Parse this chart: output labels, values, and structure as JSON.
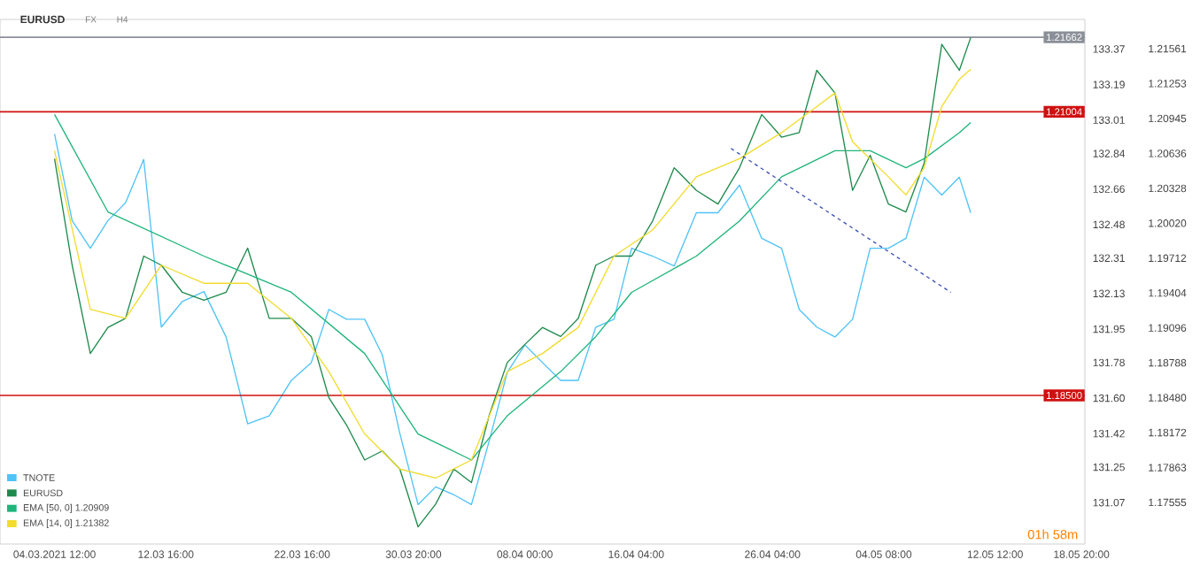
{
  "chart_data": {
    "type": "line",
    "title": "EURUSD",
    "annotations": [
      "FX",
      "H4",
      "01h 58m"
    ],
    "x": [
      "2021-03-04T12:00",
      "2021-03-05T19:00",
      "2021-03-07T03:00",
      "2021-03-08T10:00",
      "2021-03-09T17:00",
      "2021-03-11T01:00",
      "2021-03-12T08:00",
      "2021-03-13T21:00",
      "2021-03-15T11:00",
      "2021-03-17T02:00",
      "2021-03-18T16:00",
      "2021-03-20T06:00",
      "2021-03-21T21:00",
      "2021-03-23T08:00",
      "2021-03-24T15:00",
      "2021-03-25T22:00",
      "2021-03-27T06:00",
      "2021-03-28T13:00",
      "2021-03-29T20:00",
      "2021-03-31T04:00",
      "2021-04-01T11:00",
      "2021-04-02T19:00",
      "2021-04-04T02:00",
      "2021-04-05T09:00",
      "2021-04-06T17:00",
      "2021-04-08T00:00",
      "2021-04-09T07:00",
      "2021-04-10T15:00",
      "2021-04-11T22:00",
      "2021-04-13T05:00",
      "2021-04-14T13:00",
      "2021-04-15T20:00",
      "2021-04-17T09:00",
      "2021-04-18T23:00",
      "2021-04-20T14:00",
      "2021-04-22T04:00",
      "2021-04-23T18:00",
      "2021-04-25T09:00",
      "2021-04-26T20:00",
      "2021-04-28T03:00",
      "2021-04-29T10:00",
      "2021-04-30T18:00",
      "2021-05-02T01:00",
      "2021-05-03T08:00",
      "2021-05-04T16:00",
      "2021-05-05T23:00",
      "2021-05-07T07:00",
      "2021-05-08T14:00",
      "2021-05-09T21:00",
      "2021-05-10T17:00"
    ],
    "series": [
      {
        "name": "TNOTE",
        "color": "#4fc3f7",
        "values": [
          132.94,
          132.5,
          132.36,
          132.5,
          132.59,
          132.81,
          131.96,
          132.09,
          132.14,
          131.91,
          131.47,
          131.51,
          131.69,
          131.78,
          132.05,
          132.0,
          132.0,
          131.82,
          131.42,
          131.06,
          131.15,
          131.11,
          131.06,
          131.38,
          131.73,
          131.87,
          131.78,
          131.69,
          131.69,
          131.96,
          132.0,
          132.36,
          132.32,
          132.27,
          132.54,
          132.54,
          132.68,
          132.41,
          132.36,
          132.05,
          131.96,
          131.91,
          132.0,
          132.36,
          132.36,
          132.41,
          132.72,
          132.63,
          132.72,
          132.54
        ]
      },
      {
        "name": "EURUSD",
        "color": "#1e8a4c",
        "axis": "y2",
        "values": [
          1.2059,
          1.1965,
          1.1887,
          1.191,
          1.1918,
          1.1973,
          1.1965,
          1.1941,
          1.1934,
          1.1941,
          1.198,
          1.1918,
          1.1918,
          1.1902,
          1.1848,
          1.1824,
          1.1793,
          1.1801,
          1.1785,
          1.1734,
          1.1754,
          1.1785,
          1.1773,
          1.1832,
          1.1879,
          1.1895,
          1.191,
          1.1902,
          1.1918,
          1.1965,
          1.1973,
          1.1973,
          1.2004,
          1.2051,
          1.2031,
          1.2019,
          1.2051,
          1.2098,
          1.2078,
          1.2082,
          1.2137,
          1.2117,
          1.2031,
          1.2062,
          1.2019,
          1.2012,
          1.2055,
          1.216,
          1.2137,
          1.2166
        ]
      },
      {
        "name": "EMA [50, 0] 1.20909",
        "color": "#1fb57a",
        "axis": "y2",
        "x": [
          "2021-03-04T12:00",
          "2021-03-08T10:00",
          "2021-03-15T11:00",
          "2021-03-21T21:00",
          "2021-03-27T06:00",
          "2021-03-31T04:00",
          "2021-04-04T02:00",
          "2021-04-06T17:00",
          "2021-04-10T15:00",
          "2021-04-13T05:00",
          "2021-04-15T20:00",
          "2021-04-20T14:00",
          "2021-04-23T18:00",
          "2021-04-26T20:00",
          "2021-04-30T18:00",
          "2021-05-03T08:00",
          "2021-05-05T23:00",
          "2021-05-07T07:00",
          "2021-05-09T21:00",
          "2021-05-10T17:00"
        ],
        "values": [
          1.2098,
          1.2012,
          1.1973,
          1.1941,
          1.1887,
          1.1816,
          1.1793,
          1.1832,
          1.1871,
          1.1902,
          1.1941,
          1.1973,
          1.2004,
          1.2043,
          1.2066,
          1.2066,
          1.2051,
          1.2059,
          1.2082,
          1.2091
        ]
      },
      {
        "name": "EMA [14, 0] 1.21382",
        "color": "#f2dc2c",
        "axis": "y2",
        "x": [
          "2021-03-04T12:00",
          "2021-03-07T03:00",
          "2021-03-09T17:00",
          "2021-03-12T08:00",
          "2021-03-15T11:00",
          "2021-03-18T16:00",
          "2021-03-21T21:00",
          "2021-03-24T15:00",
          "2021-03-27T06:00",
          "2021-03-29T20:00",
          "2021-04-01T11:00",
          "2021-04-04T02:00",
          "2021-04-06T17:00",
          "2021-04-09T07:00",
          "2021-04-11T22:00",
          "2021-04-14T13:00",
          "2021-04-17T09:00",
          "2021-04-20T14:00",
          "2021-04-23T18:00",
          "2021-04-26T20:00",
          "2021-04-29T10:00",
          "2021-04-30T18:00",
          "2021-05-02T01:00",
          "2021-05-04T16:00",
          "2021-05-05T23:00",
          "2021-05-07T07:00",
          "2021-05-08T14:00",
          "2021-05-09T21:00",
          "2021-05-10T17:00"
        ],
        "values": [
          1.2066,
          1.1926,
          1.1918,
          1.1965,
          1.1949,
          1.1949,
          1.1918,
          1.1871,
          1.1816,
          1.1785,
          1.1777,
          1.1793,
          1.1871,
          1.1887,
          1.191,
          1.1973,
          1.1996,
          1.2043,
          1.2059,
          1.2082,
          1.2105,
          1.2117,
          1.2074,
          1.2043,
          1.2027,
          1.2051,
          1.2105,
          1.2129,
          1.2138
        ]
      },
      {
        "type": "line",
        "color": "#3f51b5",
        "axis": "y2",
        "line_style": "dashed",
        "x": [
          "2021-04-23T03:00",
          "2021-05-09T06:00"
        ],
        "values": [
          1.2068,
          1.1941
        ]
      }
    ],
    "xlim": [
      "2021-02-28T12:00",
      "2021-05-19T02:00"
    ],
    "xticks": [
      {
        "value": "2021-03-04T12:00",
        "label": "04.03.2021  12:00"
      },
      {
        "value": "2021-03-12T16:00",
        "label": "12.03  16:00"
      },
      {
        "value": "2021-03-22T16:00",
        "label": "22.03  16:00"
      },
      {
        "value": "2021-03-30T20:00",
        "label": "30.03  20:00"
      },
      {
        "value": "2021-04-08T00:00",
        "label": "08.04  00:00"
      },
      {
        "value": "2021-04-16T04:00",
        "label": "16.04  04:00"
      },
      {
        "value": "2021-04-26T04:00",
        "label": "26.04  04:00"
      },
      {
        "value": "2021-05-04T08:00",
        "label": "04.05  08:00"
      },
      {
        "value": "2021-05-12T12:00",
        "label": "12.05  12:00"
      },
      {
        "value": "2021-05-18T20:00",
        "label": "18.05  20:00"
      }
    ],
    "ylim": [
      130.86,
      133.52
    ],
    "yticks": [
      131.07,
      131.25,
      131.42,
      {
        "value": 131.6,
        "label": "131.60"
      },
      131.78,
      131.95,
      132.13,
      132.31,
      132.48,
      132.66,
      132.84,
      133.01,
      133.19,
      133.37
    ],
    "y2lim": [
      1.17188,
      1.21819
    ],
    "y2ticks": [
      1.17555,
      1.17863,
      1.18172,
      {
        "value": 1.1848,
        "label": "1.18480"
      },
      1.18788,
      1.19096,
      1.19404,
      1.19712,
      {
        "value": 1.2002,
        "label": "1.20020"
      },
      1.20328,
      1.20636,
      1.20945,
      1.21253,
      1.21561
    ],
    "ref_lines": [
      {
        "axis": "y2",
        "value": 1.21004,
        "label": "1.21004",
        "color": "#d01010"
      },
      {
        "axis": "y2",
        "value": 1.185,
        "label": "1.18500",
        "color": "#d01010"
      },
      {
        "axis": "y2",
        "value": 1.21662,
        "label": "1.21662",
        "color": "#8a8f98"
      }
    ],
    "grid": false,
    "marker": "none",
    "line_style": "solid",
    "legend": "bottom"
  }
}
